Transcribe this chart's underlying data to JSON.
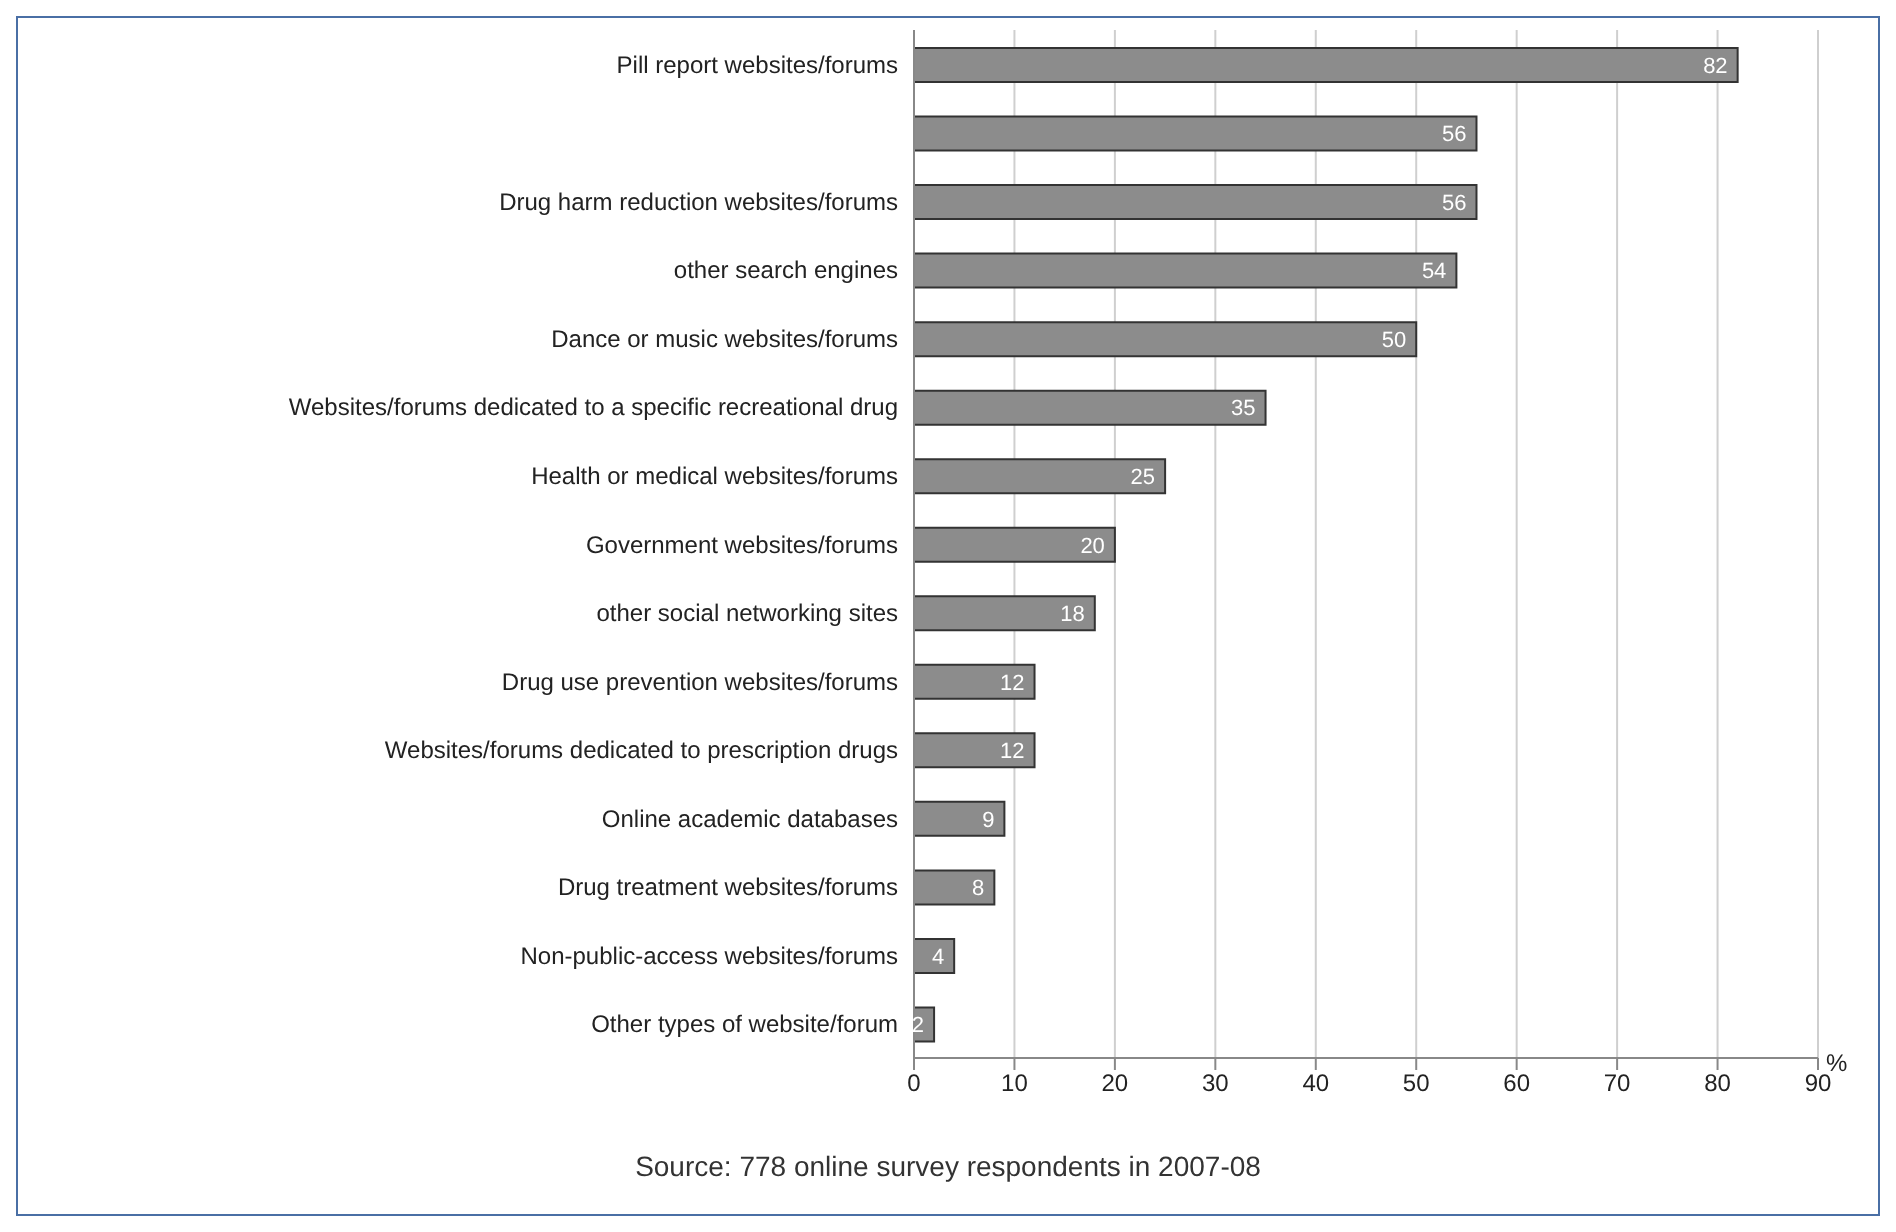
{
  "chart_data": {
    "type": "bar",
    "orientation": "horizontal",
    "categories": [
      "Pill report websites/forums",
      null,
      "Drug harm reduction websites/forums",
      "other search engines",
      "Dance or music websites/forums",
      "Websites/forums dedicated to a specific recreational drug",
      "Health or medical websites/forums",
      "Government websites/forums",
      "other social networking sites",
      "Drug use prevention websites/forums",
      "Websites/forums dedicated to prescription drugs",
      "Online academic databases",
      "Drug treatment websites/forums",
      "Non-public-access websites/forums",
      "Other types of website/forum"
    ],
    "values": [
      82,
      56,
      56,
      54,
      50,
      35,
      25,
      20,
      18,
      12,
      12,
      9,
      8,
      4,
      2
    ],
    "color": "#8c8c8c",
    "xlim": [
      0,
      90
    ],
    "xticks": [
      0,
      10,
      20,
      30,
      40,
      50,
      60,
      70,
      80,
      90
    ],
    "xlabel": "%",
    "grid": "x",
    "data_labels": true,
    "annotations": [
      "Source: 778 online survey respondents in 2007-08"
    ]
  }
}
